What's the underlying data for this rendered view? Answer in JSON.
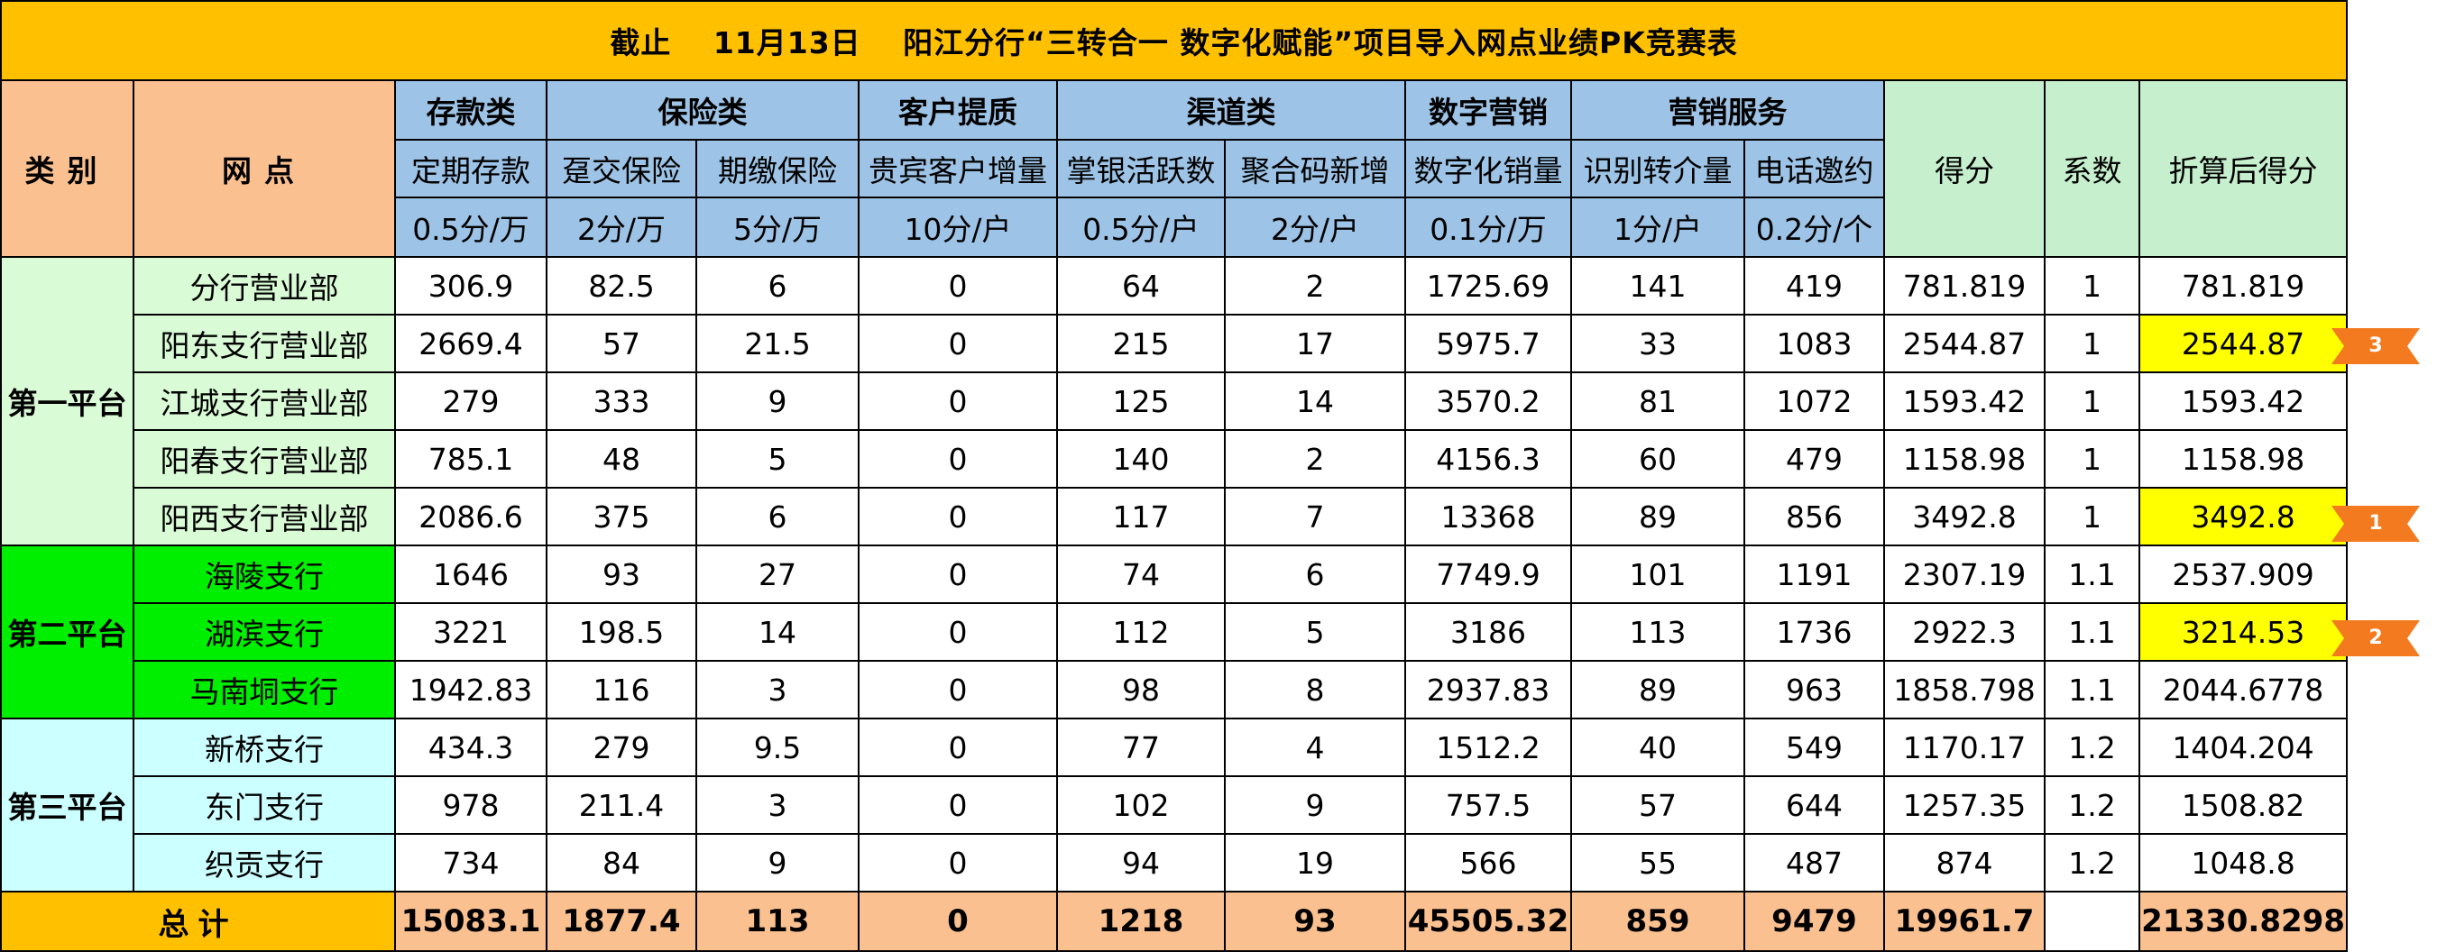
{
  "title": "截止　 11月13日　 阳江分行“三转合一 数字化赋能”项目导入网点业绩PK竞赛表",
  "headers": {
    "category": "类别",
    "branch": "网点",
    "score": "得分",
    "coef": "系数",
    "converted": "折算后得分",
    "groups": [
      "存款类",
      "保险类",
      "客户提质",
      "渠道类",
      "数字营销",
      "营销服务"
    ],
    "subs": [
      "定期存款",
      "趸交保险",
      "期缴保险",
      "贵宾客户增量",
      "掌银活跃数",
      "聚合码新增",
      "数字化销量",
      "识别转介量",
      "电话邀约"
    ],
    "units": [
      "0.5分/万",
      "2分/万",
      "5分/万",
      "10分/户",
      "0.5分/户",
      "2分/户",
      "0.1分/万",
      "1分/户",
      "0.2分/个"
    ]
  },
  "platforms": [
    "第一平台",
    "第二平台",
    "第三平台"
  ],
  "rows": [
    {
      "name": "分行营业部",
      "vals": [
        "306.9",
        "82.5",
        "6",
        "0",
        "64",
        "2",
        "1725.69",
        "141",
        "419"
      ],
      "score": "781.819",
      "coef": "1",
      "conv": "781.819"
    },
    {
      "name": "阳东支行营业部",
      "vals": [
        "2669.4",
        "57",
        "21.5",
        "0",
        "215",
        "17",
        "5975.7",
        "33",
        "1083"
      ],
      "score": "2544.87",
      "coef": "1",
      "conv": "2544.87"
    },
    {
      "name": "江城支行营业部",
      "vals": [
        "279",
        "333",
        "9",
        "0",
        "125",
        "14",
        "3570.2",
        "81",
        "1072"
      ],
      "score": "1593.42",
      "coef": "1",
      "conv": "1593.42"
    },
    {
      "name": "阳春支行营业部",
      "vals": [
        "785.1",
        "48",
        "5",
        "0",
        "140",
        "2",
        "4156.3",
        "60",
        "479"
      ],
      "score": "1158.98",
      "coef": "1",
      "conv": "1158.98"
    },
    {
      "name": "阳西支行营业部",
      "vals": [
        "2086.6",
        "375",
        "6",
        "0",
        "117",
        "7",
        "13368",
        "89",
        "856"
      ],
      "score": "3492.8",
      "coef": "1",
      "conv": "3492.8"
    },
    {
      "name": "海陵支行",
      "vals": [
        "1646",
        "93",
        "27",
        "0",
        "74",
        "6",
        "7749.9",
        "101",
        "1191"
      ],
      "score": "2307.19",
      "coef": "1.1",
      "conv": "2537.909"
    },
    {
      "name": "湖滨支行",
      "vals": [
        "3221",
        "198.5",
        "14",
        "0",
        "112",
        "5",
        "3186",
        "113",
        "1736"
      ],
      "score": "2922.3",
      "coef": "1.1",
      "conv": "3214.53"
    },
    {
      "name": "马南垌支行",
      "vals": [
        "1942.83",
        "116",
        "3",
        "0",
        "98",
        "8",
        "2937.83",
        "89",
        "963"
      ],
      "score": "1858.798",
      "coef": "1.1",
      "conv": "2044.6778"
    },
    {
      "name": "新桥支行",
      "vals": [
        "434.3",
        "279",
        "9.5",
        "0",
        "77",
        "4",
        "1512.2",
        "40",
        "549"
      ],
      "score": "1170.17",
      "coef": "1.2",
      "conv": "1404.204"
    },
    {
      "name": "东门支行",
      "vals": [
        "978",
        "211.4",
        "3",
        "0",
        "102",
        "9",
        "757.5",
        "57",
        "644"
      ],
      "score": "1257.35",
      "coef": "1.2",
      "conv": "1508.82"
    },
    {
      "name": "织贡支行",
      "vals": [
        "734",
        "84",
        "9",
        "0",
        "94",
        "19",
        "566",
        "55",
        "487"
      ],
      "score": "874",
      "coef": "1.2",
      "conv": "1048.8"
    }
  ],
  "total": {
    "label": "总计",
    "vals": [
      "15083.1",
      "1877.4",
      "113",
      "0",
      "1218",
      "93",
      "45505.32",
      "859",
      "9479"
    ],
    "score": "19961.7",
    "coef": "",
    "conv": "21330.8298"
  },
  "ranks": [
    "3",
    "1",
    "2"
  ],
  "colors": {
    "title": "#ffc000",
    "header": "#fac090",
    "group_header": "#9dc3e6",
    "score_header": "#c6efce",
    "platform1": "#d9fbd6",
    "platform2": "#00ee00",
    "platform3": "#ccffff",
    "highlight": "#ffff00",
    "rank_marker": "#f47a20"
  }
}
